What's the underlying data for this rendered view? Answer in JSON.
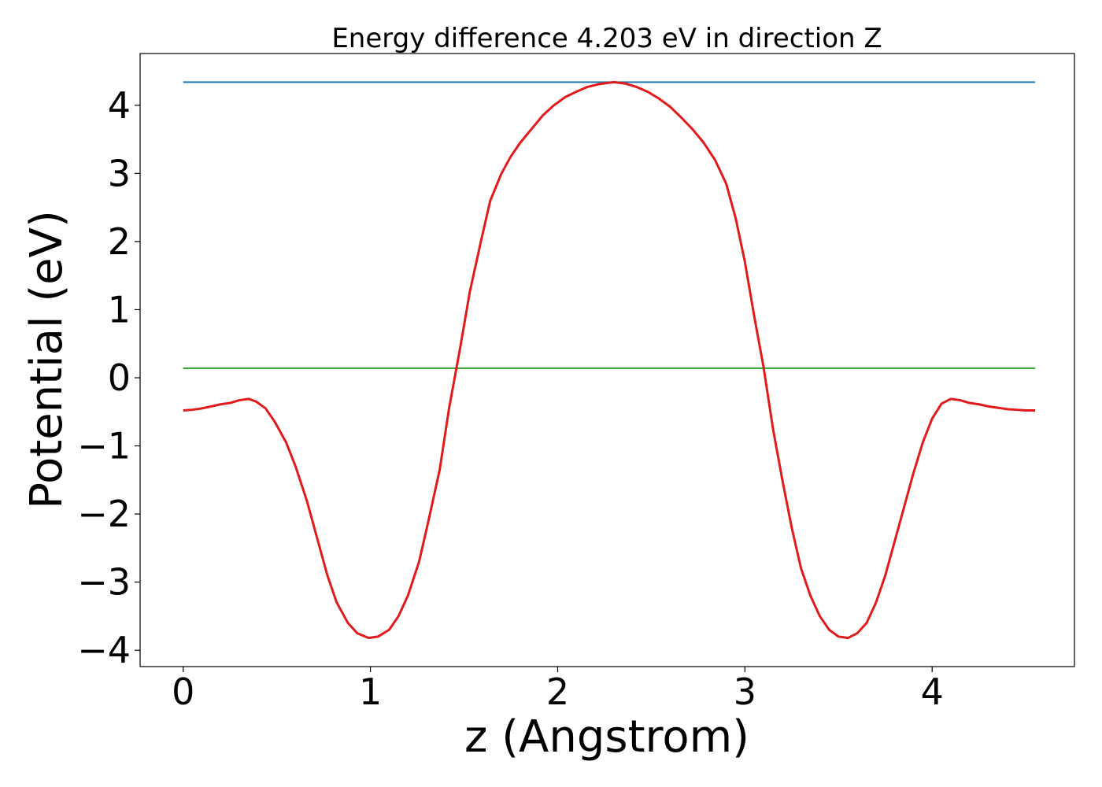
{
  "chart_data": {
    "type": "line",
    "title": "Energy difference 4.203 eV in direction Z",
    "xlabel": "z (Angstrom)",
    "ylabel": "Potential (eV)",
    "xlim": [
      -0.23,
      4.76
    ],
    "ylim": [
      -4.24,
      4.76
    ],
    "x_ticks": [
      0,
      1,
      2,
      3,
      4
    ],
    "x_tick_labels": [
      "0",
      "1",
      "2",
      "3",
      "4"
    ],
    "y_ticks": [
      -4,
      -3,
      -2,
      -1,
      0,
      1,
      2,
      3,
      4
    ],
    "y_tick_labels": [
      "−4",
      "−3",
      "−2",
      "−1",
      "0",
      "1",
      "2",
      "3",
      "4"
    ],
    "grid": false,
    "colors": {
      "potential": "#e31a1c",
      "vacuum_level": "#1f77b4",
      "fermi_level": "#2ca02c"
    },
    "series": [
      {
        "key": "potential",
        "x": [
          0.0,
          0.05,
          0.1,
          0.15,
          0.2,
          0.25,
          0.3,
          0.35,
          0.39,
          0.44,
          0.49,
          0.55,
          0.6,
          0.66,
          0.72,
          0.77,
          0.82,
          0.88,
          0.93,
          0.99,
          1.04,
          1.1,
          1.15,
          1.2,
          1.26,
          1.31,
          1.37,
          1.42,
          1.48,
          1.53,
          1.59,
          1.64,
          1.7,
          1.75,
          1.8,
          1.86,
          1.92,
          1.98,
          2.04,
          2.1,
          2.16,
          2.22,
          2.27,
          2.3,
          2.36,
          2.42,
          2.48,
          2.54,
          2.6,
          2.66,
          2.72,
          2.78,
          2.84,
          2.9,
          2.95,
          3.0,
          3.05,
          3.1,
          3.15,
          3.2,
          3.25,
          3.3,
          3.35,
          3.4,
          3.45,
          3.5,
          3.55,
          3.6,
          3.65,
          3.7,
          3.75,
          3.8,
          3.85,
          3.9,
          3.95,
          4.0,
          4.05,
          4.1,
          4.15,
          4.2,
          4.25,
          4.3,
          4.35,
          4.4,
          4.45,
          4.5,
          4.55
        ],
        "y": [
          -0.48,
          -0.47,
          -0.45,
          -0.42,
          -0.39,
          -0.37,
          -0.33,
          -0.31,
          -0.35,
          -0.45,
          -0.65,
          -0.95,
          -1.3,
          -1.8,
          -2.4,
          -2.9,
          -3.3,
          -3.6,
          -3.75,
          -3.82,
          -3.8,
          -3.7,
          -3.5,
          -3.2,
          -2.7,
          -2.1,
          -1.35,
          -0.45,
          0.45,
          1.25,
          2.0,
          2.6,
          3.0,
          3.25,
          3.45,
          3.65,
          3.85,
          4.0,
          4.12,
          4.2,
          4.27,
          4.31,
          4.33,
          4.34,
          4.32,
          4.27,
          4.2,
          4.1,
          3.98,
          3.82,
          3.65,
          3.45,
          3.2,
          2.85,
          2.35,
          1.7,
          0.9,
          0.15,
          -0.75,
          -1.5,
          -2.2,
          -2.8,
          -3.2,
          -3.5,
          -3.7,
          -3.8,
          -3.82,
          -3.75,
          -3.6,
          -3.3,
          -2.9,
          -2.4,
          -1.9,
          -1.4,
          -0.95,
          -0.6,
          -0.38,
          -0.31,
          -0.33,
          -0.37,
          -0.39,
          -0.42,
          -0.44,
          -0.46,
          -0.47,
          -0.48,
          -0.48
        ]
      },
      {
        "key": "vacuum_level",
        "x": [
          0.0,
          4.55
        ],
        "y": [
          4.34,
          4.34
        ]
      },
      {
        "key": "fermi_level",
        "x": [
          0.0,
          4.55
        ],
        "y": [
          0.14,
          0.14
        ]
      }
    ]
  }
}
